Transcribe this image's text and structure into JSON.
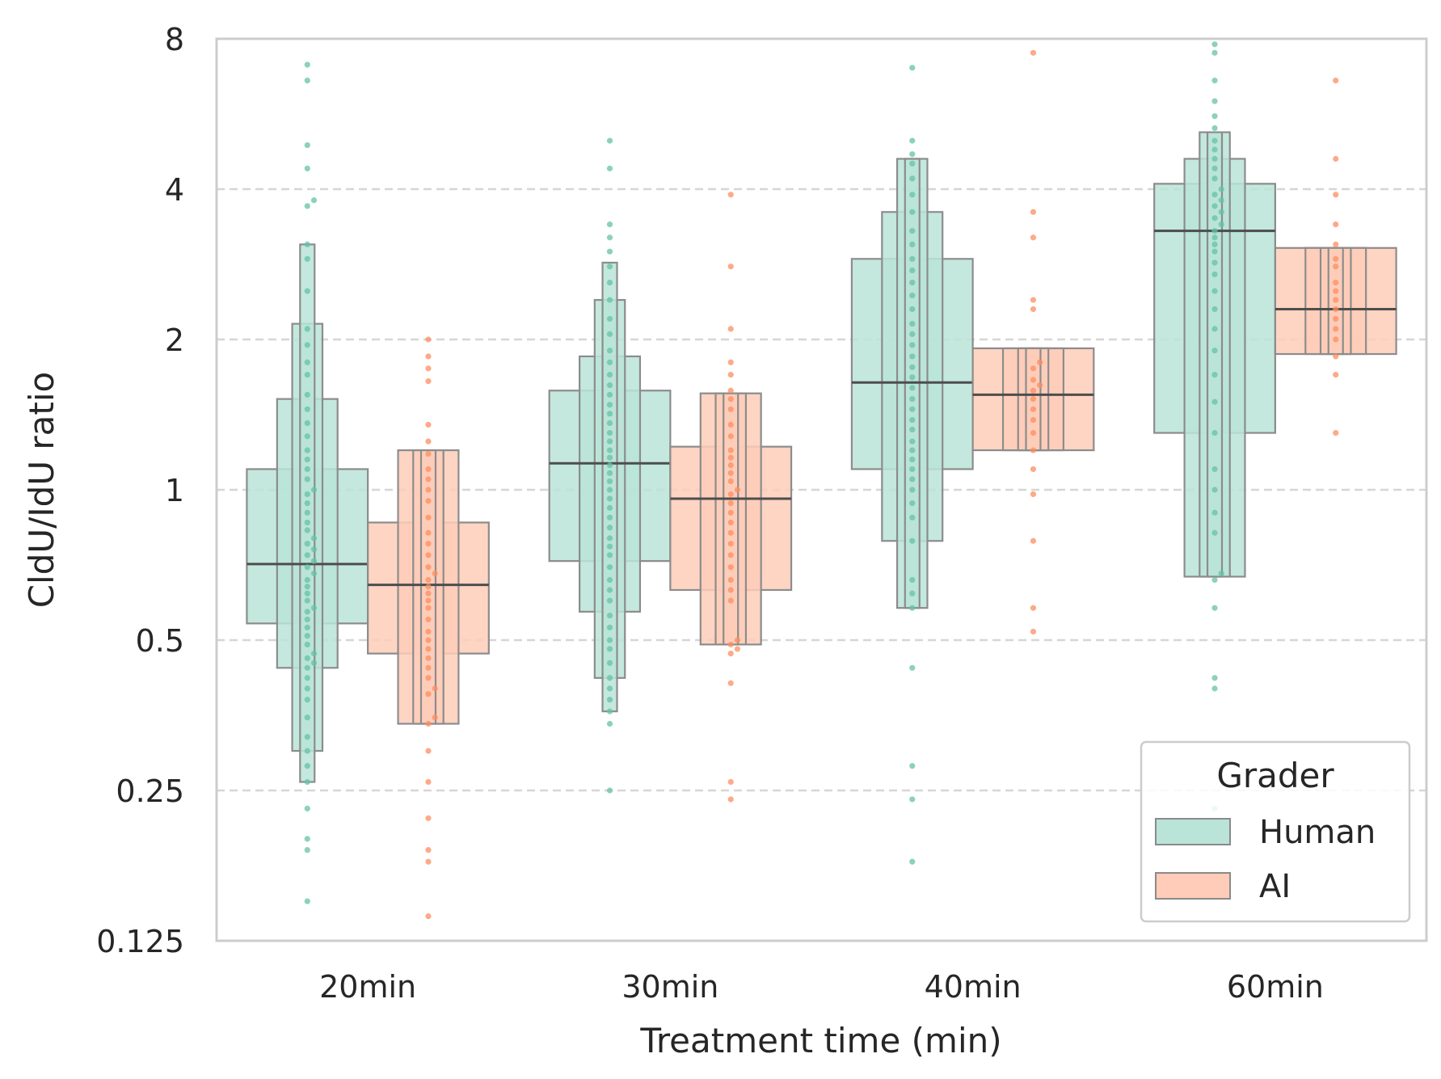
{
  "chart_data": {
    "type": "boxen",
    "title": "",
    "xlabel": "Treatment time (min)",
    "ylabel": "CldU/IdU ratio",
    "y_scale": "log2",
    "ylim": [
      0.125,
      8
    ],
    "y_ticks": [
      0.125,
      0.25,
      0.5,
      1,
      2,
      4,
      8
    ],
    "y_tick_labels": [
      "0.125",
      "0.25",
      "0.5",
      "1",
      "2",
      "4",
      "8"
    ],
    "grid": "horizontal dashed",
    "categories": [
      "20min",
      "30min",
      "40min",
      "60min"
    ],
    "legend": {
      "title": "Grader",
      "position": "bottom-right"
    },
    "series": [
      {
        "name": "Human",
        "color": "#66c2a5",
        "boxes": [
          {
            "category": "20min",
            "median": 0.71,
            "levels": [
              [
                0.54,
                1.1
              ],
              [
                0.44,
                1.52
              ],
              [
                0.3,
                2.15
              ],
              [
                0.26,
                3.1
              ]
            ],
            "points": [
              0.15,
              0.19,
              0.2,
              0.23,
              0.26,
              0.28,
              0.3,
              0.32,
              0.35,
              0.38,
              0.4,
              0.42,
              0.44,
              0.45,
              0.46,
              0.47,
              0.49,
              0.51,
              0.53,
              0.55,
              0.57,
              0.58,
              0.6,
              0.62,
              0.64,
              0.66,
              0.68,
              0.7,
              0.72,
              0.74,
              0.76,
              0.78,
              0.8,
              0.83,
              0.86,
              0.9,
              0.94,
              0.98,
              1.0,
              1.05,
              1.1,
              1.15,
              1.2,
              1.28,
              1.36,
              1.45,
              1.55,
              1.7,
              1.8,
              1.95,
              2.1,
              2.5,
              2.9,
              3.1,
              3.7,
              3.8,
              4.4,
              4.9,
              6.6,
              7.1
            ]
          },
          {
            "category": "30min",
            "median": 1.13,
            "levels": [
              [
                0.72,
                1.58
              ],
              [
                0.57,
                1.85
              ],
              [
                0.42,
                2.4
              ],
              [
                0.36,
                2.85
              ]
            ],
            "points": [
              0.25,
              0.34,
              0.36,
              0.38,
              0.4,
              0.42,
              0.45,
              0.48,
              0.5,
              0.53,
              0.56,
              0.6,
              0.63,
              0.66,
              0.7,
              0.74,
              0.77,
              0.8,
              0.84,
              0.88,
              0.92,
              0.96,
              1.0,
              1.04,
              1.08,
              1.12,
              1.16,
              1.2,
              1.25,
              1.3,
              1.36,
              1.42,
              1.48,
              1.55,
              1.62,
              1.7,
              1.8,
              1.9,
              2.05,
              2.2,
              2.4,
              2.6,
              2.8,
              3.0,
              3.2,
              3.4,
              4.4,
              5.0
            ]
          },
          {
            "category": "40min",
            "median": 1.64,
            "levels": [
              [
                1.1,
                2.9
              ],
              [
                0.79,
                3.6
              ],
              [
                0.58,
                4.6
              ],
              [
                0.58,
                4.6
              ]
            ],
            "points": [
              0.18,
              0.24,
              0.28,
              0.44,
              0.58,
              0.62,
              0.66,
              0.79,
              0.88,
              0.94,
              1.0,
              1.05,
              1.1,
              1.15,
              1.2,
              1.25,
              1.32,
              1.38,
              1.45,
              1.52,
              1.6,
              1.68,
              1.76,
              1.85,
              1.95,
              2.05,
              2.15,
              2.3,
              2.45,
              2.6,
              2.75,
              2.9,
              3.1,
              3.3,
              3.6,
              3.9,
              4.2,
              4.5,
              4.7,
              5.0,
              7.0
            ]
          },
          {
            "category": "60min",
            "median": 3.3,
            "levels": [
              [
                1.3,
                4.1
              ],
              [
                0.67,
                4.6
              ],
              [
                0.67,
                5.2
              ],
              [
                0.67,
                5.2
              ]
            ],
            "points": [
              0.23,
              0.4,
              0.42,
              0.58,
              0.66,
              0.68,
              0.82,
              0.9,
              1.0,
              1.1,
              1.3,
              1.5,
              1.7,
              1.9,
              2.1,
              2.3,
              2.5,
              2.7,
              2.85,
              3.0,
              3.1,
              3.2,
              3.3,
              3.4,
              3.5,
              3.6,
              3.7,
              3.8,
              3.9,
              4.0,
              4.2,
              4.4,
              4.6,
              4.8,
              5.0,
              5.3,
              5.6,
              6.0,
              6.6,
              7.5,
              7.8
            ]
          }
        ]
      },
      {
        "name": "AI",
        "color": "#fc8d62",
        "boxes": [
          {
            "category": "20min",
            "median": 0.645,
            "levels": [
              [
                0.47,
                0.86
              ],
              [
                0.34,
                1.2
              ],
              [
                0.34,
                1.2
              ],
              [
                0.34,
                1.2
              ]
            ],
            "points": [
              0.14,
              0.18,
              0.19,
              0.22,
              0.26,
              0.3,
              0.34,
              0.35,
              0.39,
              0.4,
              0.42,
              0.44,
              0.46,
              0.48,
              0.5,
              0.52,
              0.55,
              0.58,
              0.6,
              0.62,
              0.64,
              0.66,
              0.68,
              0.7,
              0.74,
              0.78,
              0.82,
              0.88,
              0.95,
              1.0,
              1.05,
              1.1,
              1.18,
              1.25,
              1.35,
              1.65,
              1.75,
              1.85,
              2.0
            ]
          },
          {
            "category": "30min",
            "median": 0.96,
            "levels": [
              [
                0.63,
                1.22
              ],
              [
                0.49,
                1.56
              ],
              [
                0.49,
                1.56
              ],
              [
                0.49,
                1.56
              ]
            ],
            "points": [
              0.24,
              0.26,
              0.41,
              0.47,
              0.48,
              0.49,
              0.5,
              0.6,
              0.63,
              0.66,
              0.7,
              0.74,
              0.78,
              0.82,
              0.86,
              0.9,
              0.94,
              0.98,
              1.0,
              1.04,
              1.08,
              1.12,
              1.16,
              1.2,
              1.28,
              1.35,
              1.45,
              1.52,
              1.58,
              1.7,
              1.8,
              2.1,
              2.8,
              3.9
            ]
          },
          {
            "category": "40min",
            "median": 1.55,
            "levels": [
              [
                1.2,
                1.92
              ],
              [
                1.2,
                1.92
              ],
              [
                1.2,
                1.92
              ],
              [
                1.2,
                1.92
              ]
            ],
            "points": [
              0.52,
              0.58,
              0.79,
              0.98,
              1.1,
              1.2,
              1.3,
              1.38,
              1.45,
              1.52,
              1.58,
              1.62,
              1.66,
              1.75,
              1.8,
              2.3,
              2.4,
              3.2,
              3.6,
              7.5
            ]
          },
          {
            "category": "60min",
            "median": 2.3,
            "levels": [
              [
                1.87,
                3.05
              ],
              [
                1.87,
                3.05
              ],
              [
                1.87,
                3.05
              ],
              [
                1.87,
                3.05
              ]
            ],
            "points": [
              1.3,
              1.7,
              1.85,
              2.0,
              2.1,
              2.2,
              2.3,
              2.4,
              2.5,
              2.6,
              2.8,
              2.9,
              3.1,
              3.4,
              3.9,
              4.6,
              6.6
            ]
          }
        ]
      }
    ]
  }
}
